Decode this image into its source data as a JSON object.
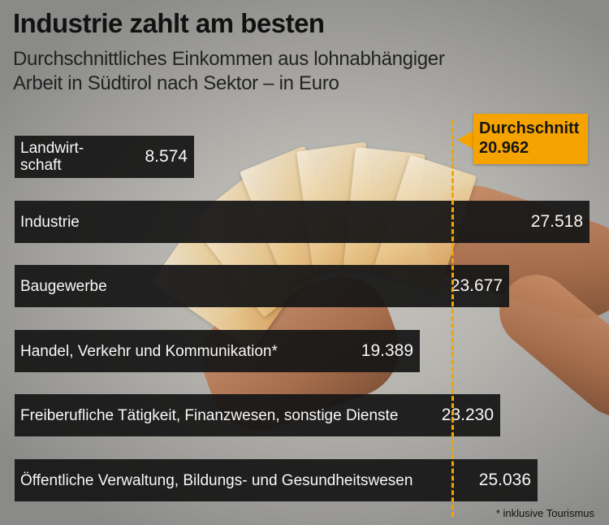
{
  "chart_data": {
    "type": "bar",
    "orientation": "horizontal",
    "title": "Industrie zahlt am besten",
    "subtitle_lines": [
      "Durchschnittliches Einkommen aus lohnabhängiger",
      "Arbeit in Südtirol nach Sektor – in Euro"
    ],
    "categories": [
      [
        "Landwirt-",
        "schaft"
      ],
      [
        "Industrie"
      ],
      [
        "Baugewerbe"
      ],
      [
        "Handel, Verkehr und Kommunikation*"
      ],
      [
        "Freiberufliche Tätigkeit, Finanzwesen, sonstige Dienste"
      ],
      [
        "Öffentliche Verwaltung, Bildungs- und Gesundheitswesen"
      ]
    ],
    "values": [
      8574,
      27518,
      23677,
      19389,
      23230,
      25036
    ],
    "value_labels": [
      "8.574",
      "27.518",
      "23.677",
      "19.389",
      "23.230",
      "25.036"
    ],
    "average": {
      "label": "Durchschnitt",
      "value": 20962,
      "value_label": "20.962",
      "color": "#f5a300"
    },
    "footnote": "* inklusive Tourismus",
    "bar_color": "#161616",
    "xlim": [
      0,
      27518
    ]
  }
}
